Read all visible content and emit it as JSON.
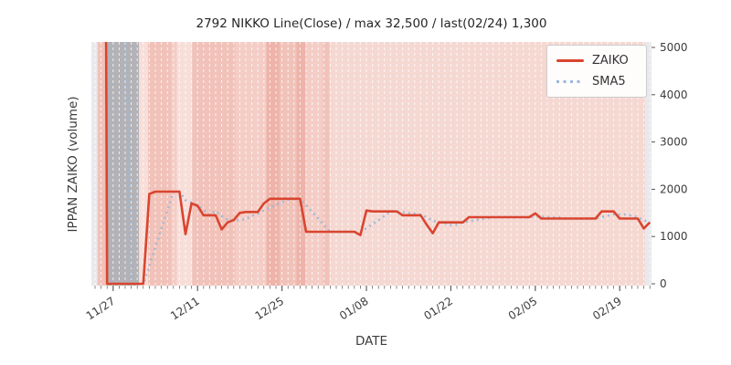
{
  "title": "2792 NIKKO Line(Close) / max 32,500 / last(02/24) 1,300",
  "xlabel": "DATE",
  "ylabel": "IPPAN ZAIKO (volume)",
  "legend": {
    "zaiko_label": "ZAIKO",
    "sma_label": "SMA5"
  },
  "colors": {
    "zaiko_line": "#d9452f",
    "sma_line": "#9ab9d8",
    "plot_bg": "#e9e9ed",
    "grid_dash": "#ffffff",
    "tick": "#555555",
    "tick_text": "#3c3c3c",
    "band_base": "#f5d8d2",
    "band_pale": "#f8ded9",
    "band_light": "#f4cdc6",
    "band_mid": "#f1c2b9",
    "band_dark": "#eeb3a9",
    "band_gray": "#b2b2b7"
  },
  "chart_data": {
    "type": "line",
    "title": "2792 NIKKO Line(Close) / max 32,500 / last(02/24) 1,300",
    "xlabel": "DATE",
    "ylabel": "IPPAN ZAIKO (volume)",
    "ylim": [
      0,
      5095
    ],
    "yticks": [
      0,
      1000,
      2000,
      3000,
      4000,
      5000
    ],
    "xticks_major": [
      "11/27",
      "12/11",
      "12/25",
      "01/08",
      "01/22",
      "02/05",
      "02/19"
    ],
    "legend_position": "upper right",
    "grid": "vertical-daily-dashed",
    "max_value": 32500,
    "last_date": "02/24",
    "last_value": 1300,
    "x": [
      "11/24",
      "11/25",
      "11/26",
      "11/27",
      "11/28",
      "11/29",
      "11/30",
      "12/01",
      "12/02",
      "12/03",
      "12/04",
      "12/05",
      "12/06",
      "12/07",
      "12/08",
      "12/09",
      "12/10",
      "12/11",
      "12/12",
      "12/13",
      "12/14",
      "12/15",
      "12/16",
      "12/17",
      "12/18",
      "12/19",
      "12/20",
      "12/21",
      "12/22",
      "12/23",
      "12/24",
      "12/25",
      "12/26",
      "12/27",
      "12/28",
      "12/29",
      "12/30",
      "12/31",
      "01/01",
      "01/02",
      "01/03",
      "01/04",
      "01/05",
      "01/06",
      "01/07",
      "01/08",
      "01/09",
      "01/10",
      "01/11",
      "01/12",
      "01/13",
      "01/14",
      "01/15",
      "01/16",
      "01/17",
      "01/18",
      "01/19",
      "01/20",
      "01/21",
      "01/22",
      "01/23",
      "01/24",
      "01/25",
      "01/26",
      "01/27",
      "01/28",
      "01/29",
      "01/30",
      "01/31",
      "02/01",
      "02/02",
      "02/03",
      "02/04",
      "02/05",
      "02/06",
      "02/07",
      "02/08",
      "02/09",
      "02/10",
      "02/11",
      "02/12",
      "02/13",
      "02/14",
      "02/15",
      "02/16",
      "02/17",
      "02/18",
      "02/19",
      "02/20",
      "02/21",
      "02/22",
      "02/23",
      "02/24"
    ],
    "series": [
      {
        "name": "ZAIKO",
        "style": "solid",
        "values": [
          32500,
          32500,
          0,
          0,
          0,
          0,
          0,
          0,
          0,
          1900,
          1950,
          1950,
          1950,
          1950,
          1950,
          1050,
          1700,
          1650,
          1450,
          1450,
          1450,
          1150,
          1300,
          1350,
          1500,
          1520,
          1520,
          1520,
          1700,
          1800,
          1800,
          1800,
          1800,
          1800,
          1800,
          1100,
          1100,
          1100,
          1100,
          1100,
          1100,
          1100,
          1100,
          1100,
          1030,
          1550,
          1530,
          1530,
          1530,
          1530,
          1530,
          1450,
          1450,
          1450,
          1450,
          1250,
          1070,
          1300,
          1300,
          1300,
          1300,
          1300,
          1410,
          1410,
          1410,
          1410,
          1410,
          1410,
          1410,
          1410,
          1410,
          1410,
          1410,
          1490,
          1380,
          1380,
          1380,
          1380,
          1380,
          1380,
          1380,
          1380,
          1380,
          1380,
          1530,
          1530,
          1530,
          1380,
          1380,
          1380,
          1380,
          1170,
          1300
        ]
      },
      {
        "name": "SMA5",
        "style": "dotted",
        "derived": "5-day simple moving average of ZAIKO",
        "window": 5
      }
    ],
    "background_bands": [
      {
        "from": 0.9,
        "to": 2.4,
        "shade": "mid"
      },
      {
        "from": 2.4,
        "to": 7.8,
        "shade": "gray"
      },
      {
        "from": 7.8,
        "to": 9.3,
        "shade": "pale"
      },
      {
        "from": 9.3,
        "to": 13.2,
        "shade": "mid"
      },
      {
        "from": 13.2,
        "to": 14.1,
        "shade": "light"
      },
      {
        "from": 14.1,
        "to": 16.6,
        "shade": "pale"
      },
      {
        "from": 16.6,
        "to": 23.8,
        "shade": "mid"
      },
      {
        "from": 23.8,
        "to": 28.9,
        "shade": "light"
      },
      {
        "from": 28.9,
        "to": 31.1,
        "shade": "dark"
      },
      {
        "from": 31.1,
        "to": 33.9,
        "shade": "mid"
      },
      {
        "from": 33.9,
        "to": 35.4,
        "shade": "dark"
      },
      {
        "from": 35.4,
        "to": 38.3,
        "shade": "light"
      },
      {
        "from": 38.3,
        "to": 39.4,
        "shade": "mid"
      },
      {
        "from": 39.4,
        "to": 91.7,
        "shade": "base"
      }
    ]
  }
}
